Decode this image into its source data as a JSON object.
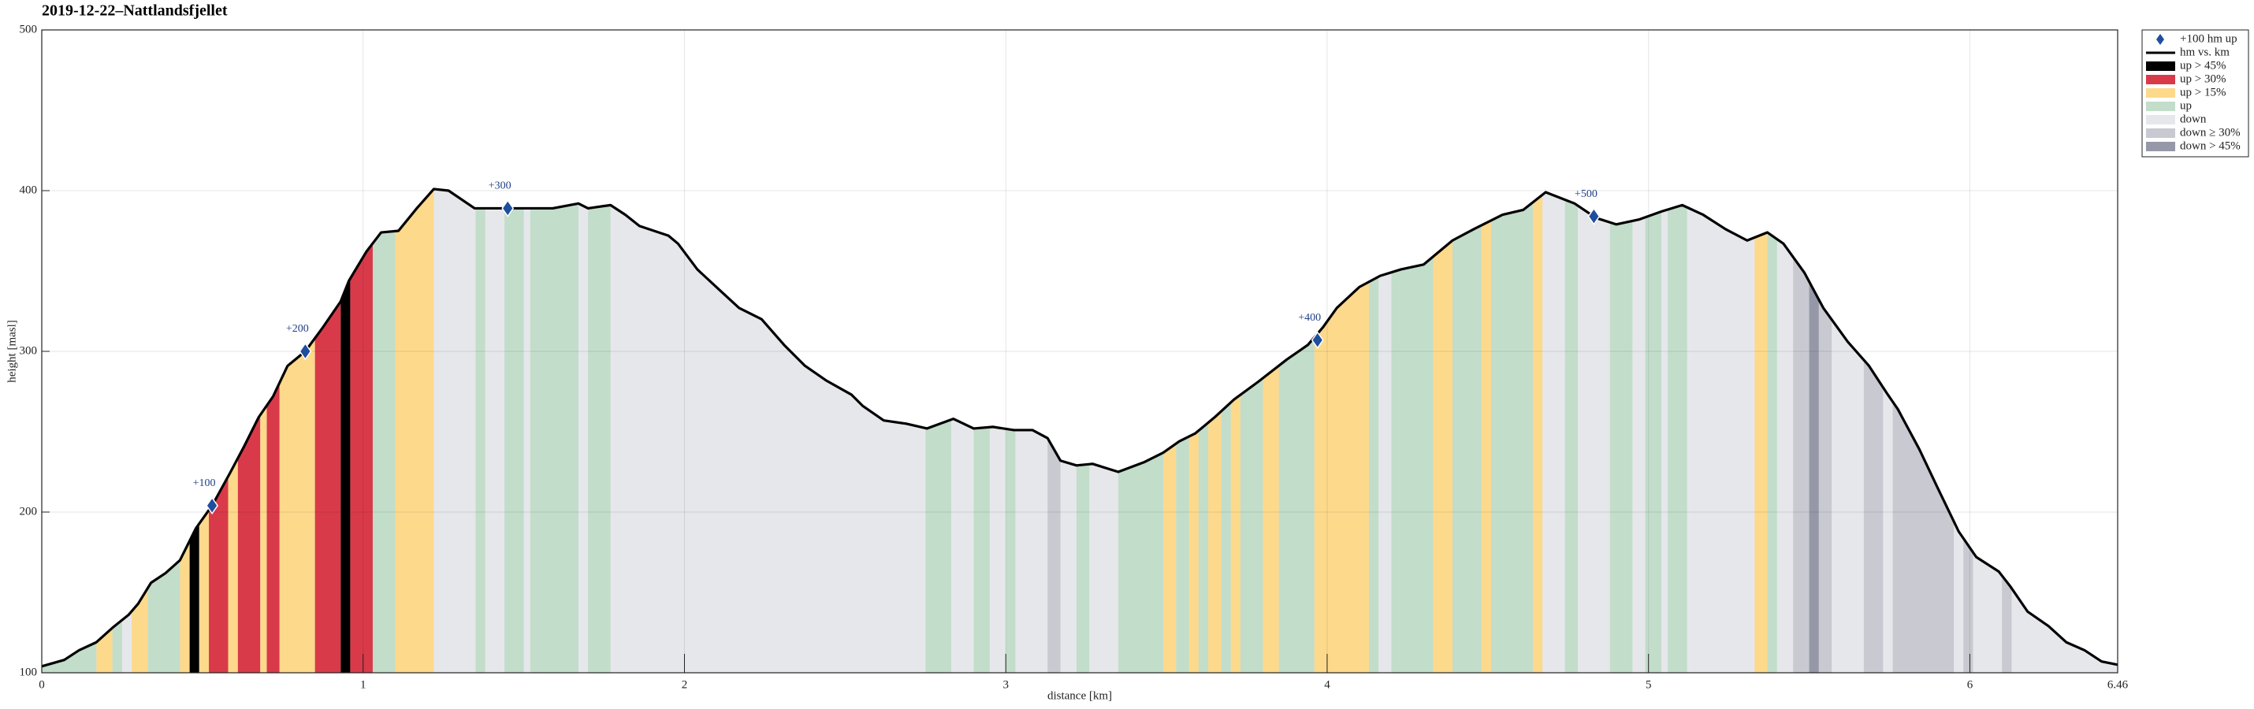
{
  "chart_data": {
    "type": "elevation-profile",
    "title": "2019-12-22–Nattlandsfjellet",
    "xlabel": "distance [km]",
    "ylabel": "height [masl]",
    "xlim": [
      0,
      6.46
    ],
    "ylim": [
      100,
      500
    ],
    "xticks": [
      0,
      1,
      2,
      3,
      4,
      5,
      6,
      6.46
    ],
    "yticks": [
      100,
      200,
      300,
      400,
      500
    ],
    "grid": true,
    "legend_position": "outside right top",
    "milestones": {
      "name": "+100 hm up",
      "color": "#1f4e9c",
      "points": [
        {
          "label": "+100",
          "x": 0.53,
          "y": 204
        },
        {
          "label": "+200",
          "x": 0.82,
          "y": 300
        },
        {
          "label": "+300",
          "x": 1.45,
          "y": 389
        },
        {
          "label": "+400",
          "x": 3.97,
          "y": 307
        },
        {
          "label": "+500",
          "x": 4.83,
          "y": 384
        }
      ]
    },
    "line": {
      "name": "hm vs. km",
      "color": "#000000",
      "x": [
        0,
        0.07,
        0.116,
        0.17,
        0.22,
        0.27,
        0.3,
        0.34,
        0.385,
        0.43,
        0.48,
        0.53,
        0.585,
        0.63,
        0.675,
        0.72,
        0.765,
        0.82,
        0.875,
        0.93,
        0.956,
        1.01,
        1.056,
        1.11,
        1.167,
        1.22,
        1.266,
        1.347,
        1.414,
        1.5,
        1.59,
        1.67,
        1.7,
        1.77,
        1.816,
        1.86,
        1.95,
        1.98,
        2.04,
        2.11,
        2.17,
        2.24,
        2.31,
        2.375,
        2.44,
        2.52,
        2.555,
        2.62,
        2.69,
        2.755,
        2.837,
        2.9,
        2.96,
        3.025,
        3.083,
        3.13,
        3.17,
        3.22,
        3.27,
        3.35,
        3.43,
        3.49,
        3.54,
        3.59,
        3.65,
        3.71,
        3.785,
        3.875,
        3.94,
        3.987,
        4.03,
        4.1,
        4.165,
        4.23,
        4.3,
        4.39,
        4.456,
        4.546,
        4.61,
        4.68,
        4.77,
        4.837,
        4.9,
        4.97,
        5.04,
        5.105,
        5.17,
        5.24,
        5.307,
        5.37,
        5.42,
        5.485,
        5.544,
        5.62,
        5.686,
        5.745,
        5.776,
        5.843,
        5.9,
        5.965,
        6.02,
        6.09,
        6.125,
        6.18,
        6.245,
        6.3,
        6.357,
        6.41,
        6.46
      ],
      "values": [
        104,
        108,
        114,
        119,
        128,
        136,
        143,
        156,
        162,
        170,
        190,
        204,
        224,
        241,
        259,
        272,
        291,
        300,
        315,
        331,
        344,
        362,
        374,
        375,
        389,
        401,
        400,
        389,
        389,
        389,
        389,
        392,
        389,
        391,
        385,
        378,
        372,
        367,
        351,
        338,
        327,
        320,
        304,
        291,
        282,
        273,
        266,
        257,
        255,
        252,
        258,
        252,
        253,
        251,
        251,
        246,
        232,
        229,
        230,
        225,
        231,
        237,
        244,
        249,
        259,
        270,
        281,
        295,
        304,
        315,
        327,
        340,
        347,
        351,
        354,
        369,
        376,
        385,
        388,
        399,
        392,
        383,
        379,
        382,
        387,
        391,
        385,
        376,
        369,
        374,
        367,
        349,
        327,
        306,
        291,
        273,
        264,
        239,
        215,
        188,
        172,
        163,
        154,
        138,
        129,
        119,
        114,
        107,
        105
      ]
    },
    "classes": [
      {
        "name": "up > 45%",
        "color": "#000000",
        "intervals": [
          [
            0.46,
            0.49
          ],
          [
            0.93,
            0.96
          ]
        ]
      },
      {
        "name": "up > 30%",
        "color": "#d93a4a",
        "intervals": [
          [
            0.52,
            0.58
          ],
          [
            0.61,
            0.68
          ],
          [
            0.7,
            0.74
          ],
          [
            0.85,
            0.93
          ],
          [
            0.96,
            1.03
          ]
        ]
      },
      {
        "name": "up > 15%",
        "color": "#fdd98b",
        "intervals": [
          [
            0.17,
            0.22
          ],
          [
            0.28,
            0.33
          ],
          [
            0.43,
            0.46
          ],
          [
            0.49,
            0.52
          ],
          [
            0.58,
            0.61
          ],
          [
            0.68,
            0.7
          ],
          [
            0.74,
            0.85
          ],
          [
            1.1,
            1.22
          ],
          [
            3.49,
            3.53
          ],
          [
            3.57,
            3.6
          ],
          [
            3.63,
            3.67
          ],
          [
            3.7,
            3.73
          ],
          [
            3.8,
            3.85
          ],
          [
            3.96,
            4.13
          ],
          [
            4.33,
            4.39
          ],
          [
            4.48,
            4.51
          ],
          [
            4.64,
            4.67
          ],
          [
            5.33,
            5.37
          ]
        ]
      },
      {
        "name": "up",
        "color": "#c2ddca",
        "intervals": [
          [
            0,
            0.17
          ],
          [
            0.22,
            0.25
          ],
          [
            0.33,
            0.43
          ],
          [
            1.03,
            1.1
          ],
          [
            1.35,
            1.38
          ],
          [
            1.44,
            1.5
          ],
          [
            1.52,
            1.67
          ],
          [
            1.7,
            1.77
          ],
          [
            2.75,
            2.83
          ],
          [
            2.9,
            2.95
          ],
          [
            3.0,
            3.03
          ],
          [
            3.22,
            3.26
          ],
          [
            3.35,
            3.49
          ],
          [
            3.53,
            3.57
          ],
          [
            3.6,
            3.63
          ],
          [
            3.67,
            3.7
          ],
          [
            3.73,
            3.8
          ],
          [
            3.85,
            3.96
          ],
          [
            4.13,
            4.16
          ],
          [
            4.2,
            4.33
          ],
          [
            4.39,
            4.48
          ],
          [
            4.51,
            4.64
          ],
          [
            4.74,
            4.78
          ],
          [
            4.88,
            4.95
          ],
          [
            4.99,
            5.04
          ],
          [
            5.06,
            5.12
          ],
          [
            5.37,
            5.4
          ]
        ]
      },
      {
        "name": "down",
        "color": "#e6e7eb",
        "intervals": []
      },
      {
        "name": "down ≥ 30%",
        "color": "#c8c9d1",
        "intervals": [
          [
            3.13,
            3.17
          ],
          [
            5.45,
            5.5
          ],
          [
            5.53,
            5.57
          ],
          [
            5.67,
            5.73
          ],
          [
            5.76,
            5.95
          ],
          [
            5.98,
            6.01
          ],
          [
            6.1,
            6.13
          ]
        ]
      },
      {
        "name": "down > 45%",
        "color": "#9698a8",
        "intervals": [
          [
            5.5,
            5.53
          ]
        ]
      }
    ]
  }
}
